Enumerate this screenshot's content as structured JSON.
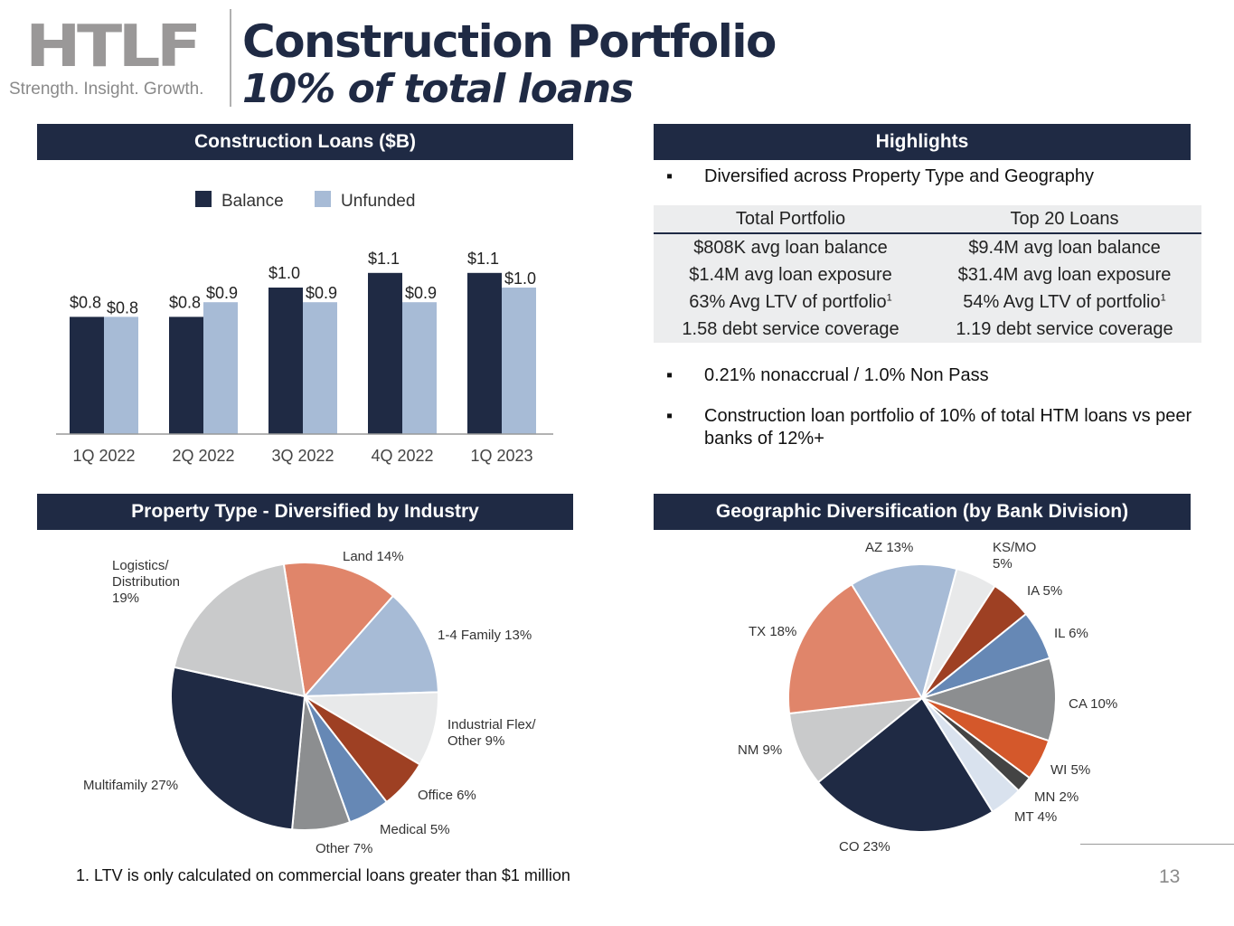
{
  "header": {
    "logo": "HTLF",
    "tagline": "Strength. Insight. Growth.",
    "title": "Construction Portfolio",
    "subtitle": "10% of total loans"
  },
  "sections": {
    "loans": "Construction Loans ($B)",
    "highlights": "Highlights",
    "property": "Property Type - Diversified by Industry",
    "geo": "Geographic Diversification (by Bank Division)"
  },
  "highlights": {
    "bullet1": "Diversified across Property Type and Geography",
    "table": {
      "headers": [
        "Total Portfolio",
        "Top 20 Loans"
      ],
      "rows": [
        [
          "$808K avg loan balance",
          "$9.4M avg loan balance"
        ],
        [
          "$1.4M avg loan exposure",
          "$31.4M avg loan exposure"
        ],
        [
          "63% Avg LTV of portfolio",
          "54% Avg LTV of portfolio"
        ],
        [
          "1.58 debt service coverage",
          "1.19 debt service coverage"
        ]
      ],
      "footnote_mark": "1"
    },
    "bullet2": "0.21% nonaccrual / 1.0% Non Pass",
    "bullet3": "Construction loan portfolio of  10% of total HTM loans vs peer banks of 12%+"
  },
  "footnote": "1.    LTV is only calculated on commercial loans greater than $1 million",
  "page_number": "13",
  "chart_data": [
    {
      "type": "bar",
      "title": "Construction Loans ($B)",
      "categories": [
        "1Q 2022",
        "2Q 2022",
        "3Q 2022",
        "4Q 2022",
        "1Q 2023"
      ],
      "series": [
        {
          "name": "Balance",
          "color": "#1f2a44",
          "values": [
            0.8,
            0.8,
            1.0,
            1.1,
            1.1
          ],
          "labels": [
            "$0.8",
            "$0.8",
            "$1.0",
            "$1.1",
            "$1.1"
          ]
        },
        {
          "name": "Unfunded",
          "color": "#a7bbd6",
          "values": [
            0.8,
            0.9,
            0.9,
            0.9,
            1.0
          ],
          "labels": [
            "$0.8",
            "$0.9",
            "$0.9",
            "$0.9",
            "$1.0"
          ]
        }
      ],
      "ylim": [
        0,
        1.3
      ],
      "legend": "top"
    },
    {
      "type": "pie",
      "title": "Property Type - Diversified by Industry",
      "start_angle_deg": -9,
      "slices": [
        {
          "label": "Land 14%",
          "value": 14,
          "color": "#e0856a"
        },
        {
          "label": "1-4 Family 13%",
          "value": 13,
          "color": "#a7bbd6"
        },
        {
          "label": "Industrial Flex/ Other 9%",
          "value": 9,
          "color": "#e8e9ea"
        },
        {
          "label": "Office 6%",
          "value": 6,
          "color": "#9e4023"
        },
        {
          "label": "Medical 5%",
          "value": 5,
          "color": "#6688b5"
        },
        {
          "label": "Other 7%",
          "value": 7,
          "color": "#8c8e90"
        },
        {
          "label": "Multifamily 27%",
          "value": 27,
          "color": "#1f2a44"
        },
        {
          "label": "Logistics/ Distribution 19%",
          "value": 19,
          "color": "#c9cacb"
        }
      ]
    },
    {
      "type": "pie",
      "title": "Geographic Diversification (by Bank Division)",
      "start_angle_deg": 15,
      "slices": [
        {
          "label": "KS/MO 5%",
          "value": 5,
          "color": "#e8e9ea"
        },
        {
          "label": "IA 5%",
          "value": 5,
          "color": "#9e4023"
        },
        {
          "label": "IL 6%",
          "value": 6,
          "color": "#6688b5"
        },
        {
          "label": "CA 10%",
          "value": 10,
          "color": "#8c8e90"
        },
        {
          "label": "WI 5%",
          "value": 5,
          "color": "#d4582b"
        },
        {
          "label": "MN 2%",
          "value": 2,
          "color": "#444444"
        },
        {
          "label": "MT 4%",
          "value": 4,
          "color": "#d9e2ee"
        },
        {
          "label": "CO 23%",
          "value": 23,
          "color": "#1f2a44"
        },
        {
          "label": "NM 9%",
          "value": 9,
          "color": "#c9cacb"
        },
        {
          "label": "TX 18%",
          "value": 18,
          "color": "#e0856a"
        },
        {
          "label": "AZ 13%",
          "value": 13,
          "color": "#a7bbd6"
        }
      ]
    }
  ]
}
